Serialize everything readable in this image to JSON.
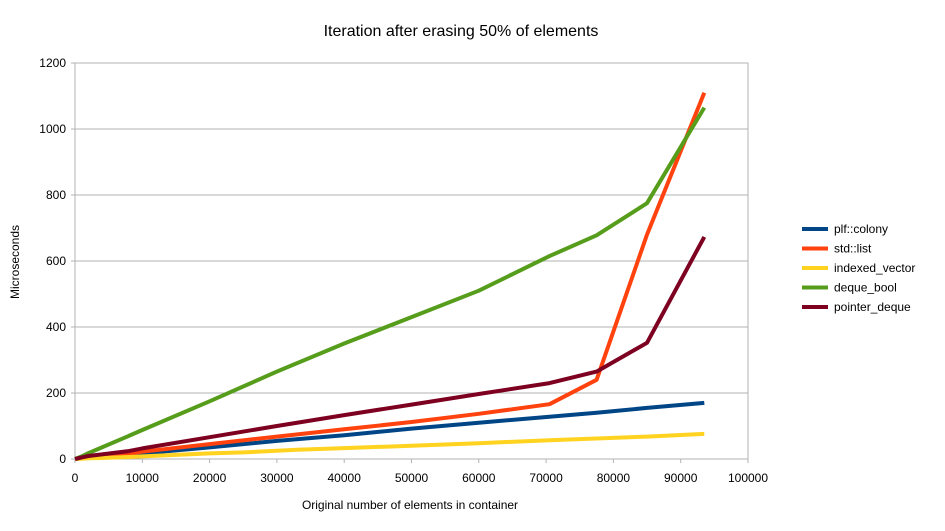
{
  "chart_data": {
    "type": "line",
    "title": "Iteration after erasing 50% of elements",
    "xlabel": "Original number of elements in container",
    "ylabel": "Microseconds",
    "xlim": [
      0,
      100000
    ],
    "ylim": [
      0,
      1200
    ],
    "xticks": [
      0,
      10000,
      20000,
      30000,
      40000,
      50000,
      60000,
      70000,
      80000,
      90000,
      100000
    ],
    "yticks": [
      0,
      200,
      400,
      600,
      800,
      1000,
      1200
    ],
    "grid": "horizontal",
    "legend_position": "right",
    "series": [
      {
        "name": "plf::colony",
        "color": "#004586",
        "points": [
          [
            0,
            0
          ],
          [
            1000,
            2
          ],
          [
            2000,
            3
          ],
          [
            4000,
            6
          ],
          [
            8000,
            12
          ],
          [
            10000,
            17
          ],
          [
            20000,
            35
          ],
          [
            30000,
            55
          ],
          [
            40000,
            72
          ],
          [
            50000,
            92
          ],
          [
            60000,
            110
          ],
          [
            70500,
            128
          ],
          [
            77500,
            140
          ],
          [
            85000,
            155
          ],
          [
            93500,
            170
          ]
        ]
      },
      {
        "name": "std::list",
        "color": "#ff420e",
        "points": [
          [
            0,
            0
          ],
          [
            1000,
            2
          ],
          [
            2000,
            4
          ],
          [
            4000,
            8
          ],
          [
            8000,
            16
          ],
          [
            10000,
            22
          ],
          [
            20000,
            45
          ],
          [
            30000,
            68
          ],
          [
            40000,
            90
          ],
          [
            50000,
            112
          ],
          [
            60000,
            137
          ],
          [
            70500,
            166
          ],
          [
            77500,
            240
          ],
          [
            85000,
            680
          ],
          [
            93500,
            1110
          ]
        ]
      },
      {
        "name": "indexed_vector",
        "color": "#ffd320",
        "points": [
          [
            0,
            0
          ],
          [
            1000,
            1
          ],
          [
            2000,
            2
          ],
          [
            4000,
            3
          ],
          [
            8000,
            6
          ],
          [
            10000,
            8
          ],
          [
            20000,
            17
          ],
          [
            25000,
            20
          ],
          [
            33000,
            28
          ],
          [
            40000,
            33
          ],
          [
            50000,
            40
          ],
          [
            60000,
            48
          ],
          [
            70500,
            57
          ],
          [
            77500,
            62
          ],
          [
            85000,
            68
          ],
          [
            93500,
            76
          ]
        ]
      },
      {
        "name": "deque_bool",
        "color": "#579d1c",
        "points": [
          [
            0,
            0
          ],
          [
            1000,
            8
          ],
          [
            2000,
            18
          ],
          [
            4000,
            35
          ],
          [
            8000,
            70
          ],
          [
            10000,
            88
          ],
          [
            20000,
            175
          ],
          [
            30000,
            265
          ],
          [
            40000,
            350
          ],
          [
            50000,
            430
          ],
          [
            60000,
            510
          ],
          [
            70500,
            615
          ],
          [
            77500,
            678
          ],
          [
            85000,
            775
          ],
          [
            93500,
            1065
          ]
        ]
      },
      {
        "name": "pointer_deque",
        "color": "#7e0021",
        "points": [
          [
            0,
            0
          ],
          [
            1000,
            5
          ],
          [
            2000,
            9
          ],
          [
            4000,
            14
          ],
          [
            8000,
            24
          ],
          [
            10000,
            32
          ],
          [
            20000,
            66
          ],
          [
            30000,
            100
          ],
          [
            40000,
            133
          ],
          [
            50000,
            165
          ],
          [
            60000,
            197
          ],
          [
            70500,
            230
          ],
          [
            77500,
            265
          ],
          [
            85000,
            352
          ],
          [
            93500,
            673
          ]
        ]
      }
    ]
  }
}
